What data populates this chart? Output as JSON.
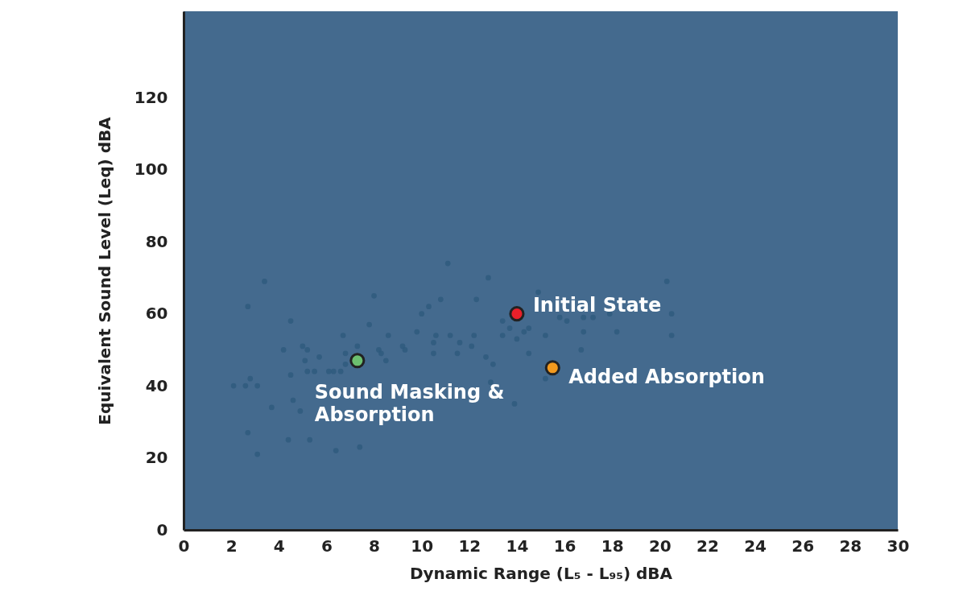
{
  "chart_data": {
    "type": "scatter",
    "xlabel": "Dynamic Range (L₅ - L₉₅)      dBA",
    "ylabel": "Equivalent Sound Level (Leq)      dBA",
    "xlim": [
      0,
      30
    ],
    "xticks": [
      0,
      2,
      4,
      6,
      8,
      10,
      12,
      14,
      16,
      18,
      20,
      22,
      24,
      26,
      28,
      30
    ],
    "ylim": [
      0,
      144
    ],
    "yticks": [
      0,
      20,
      40,
      60,
      80,
      100,
      120
    ],
    "grid": false,
    "marker": "circle",
    "series": [
      {
        "color": "#2f5a7e",
        "x": [
          3.4,
          2.7,
          2.1,
          2.6,
          2.8,
          3.1,
          3.7,
          2.7,
          3.1,
          4.5,
          4.2,
          4.5,
          4.6,
          5.0,
          5.2,
          5.1,
          5.7,
          5.2,
          5.5,
          6.3,
          6.6,
          6.8,
          6.7,
          6.8,
          7.3,
          7.8,
          8.0,
          8.2,
          8.6,
          8.3,
          8.5,
          9.2,
          9.3,
          9.8,
          10.0,
          10.3,
          10.5,
          10.6,
          10.8,
          10.5,
          11.1,
          11.2,
          11.5,
          11.6,
          12.1,
          12.2,
          12.3,
          12.8,
          12.7,
          13.0,
          13.4,
          13.4,
          13.7,
          14.0,
          14.3,
          14.5,
          14.9,
          14.5,
          15.2,
          15.8,
          16.1,
          16.7,
          16.8,
          16.8,
          17.2,
          17.9,
          18.2,
          20.3,
          20.5,
          20.5,
          6.4,
          7.4,
          6.1,
          4.9,
          4.4,
          5.3,
          12.9,
          13.9,
          15.2
        ],
        "values": [
          69,
          62,
          40,
          40,
          42,
          40,
          34,
          27,
          21,
          58,
          50,
          43,
          36,
          51,
          50,
          47,
          48,
          44,
          44,
          44,
          44,
          46,
          54,
          49,
          51,
          57,
          65,
          50,
          54,
          49,
          47,
          51,
          50,
          55,
          60,
          62,
          52,
          54,
          64,
          49,
          74,
          54,
          49,
          52,
          51,
          54,
          64,
          70,
          48,
          46,
          58,
          54,
          56,
          53,
          55,
          56,
          66,
          49,
          54,
          59,
          58,
          50,
          55,
          59,
          59,
          60,
          55,
          69,
          60,
          54,
          22,
          23,
          44,
          33,
          25,
          25,
          41,
          35,
          42
        ]
      },
      {
        "name": "Sound Masking &\nAbsorption",
        "color": "#6cc070",
        "x": [
          7.3
        ],
        "values": [
          47
        ]
      },
      {
        "name": "Initial State",
        "color": "#e8202a",
        "x": [
          14.0
        ],
        "values": [
          60
        ]
      },
      {
        "name": "Added Absorption",
        "color": "#f39a1e",
        "x": [
          15.5
        ],
        "values": [
          45
        ]
      }
    ]
  }
}
